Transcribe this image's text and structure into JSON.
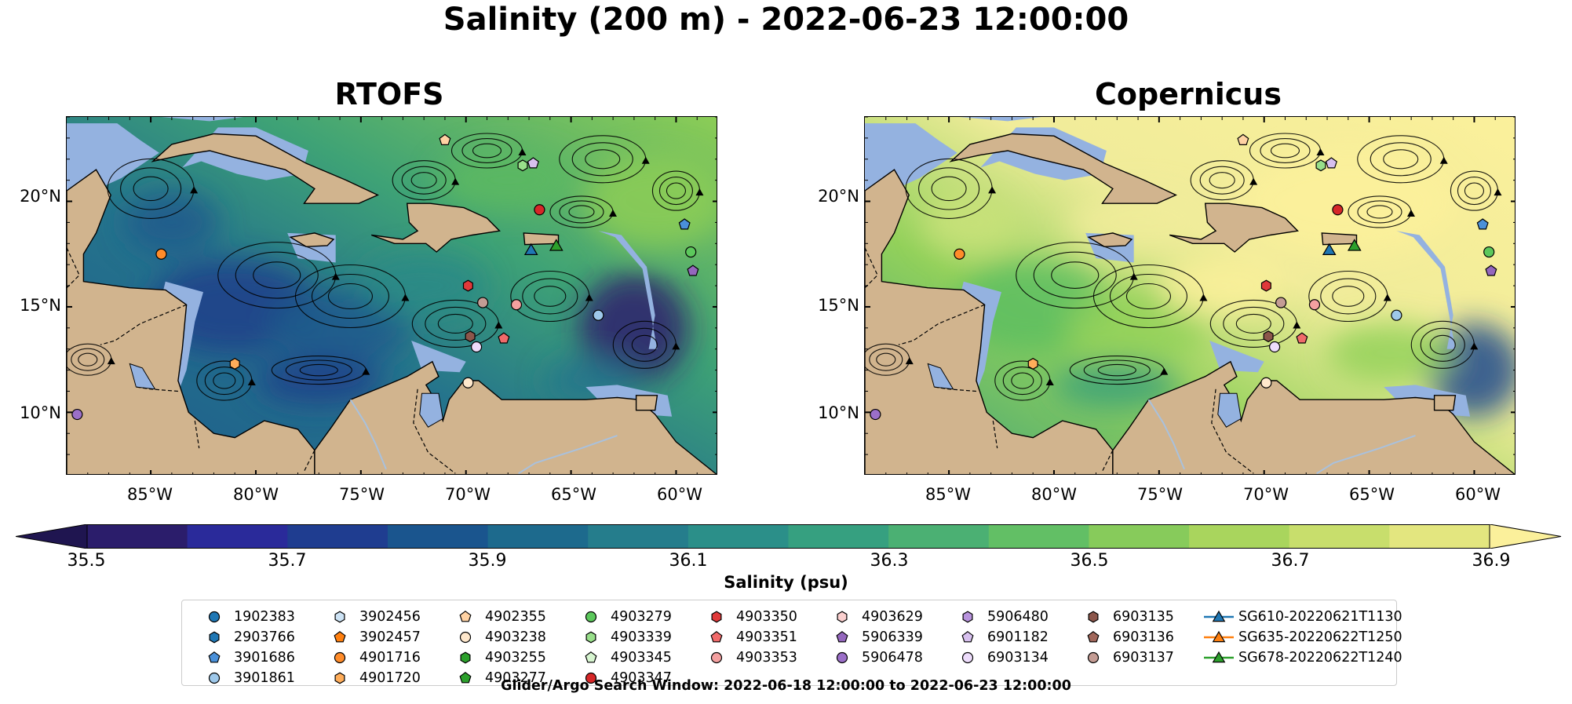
{
  "suptitle": "Salinity (200 m) - 2022-06-23 12:00:00",
  "panels": [
    {
      "title": "RTOFS",
      "palette": [
        "#2e1f6c",
        "#1f3e8a",
        "#1d5a8c",
        "#25748c",
        "#2b8a86",
        "#3ea276",
        "#5cb861",
        "#8ccd56",
        "#c8dd6b"
      ]
    },
    {
      "title": "Copernicus",
      "palette": [
        "#24175f",
        "#1f4a8c",
        "#2a7c8c",
        "#3aa07a",
        "#5cbd62",
        "#93d15b",
        "#c9e27a",
        "#f0ec9a",
        "#fbf09b"
      ]
    }
  ],
  "map_colors": {
    "land": "#d1b48e",
    "shelf": "#94b2e0",
    "border": "#000000"
  },
  "axes": {
    "y_labels": [
      "20°N",
      "15°N",
      "10°N"
    ],
    "x_labels": [
      "85°W",
      "80°W",
      "75°W",
      "70°W",
      "65°W",
      "60°W"
    ]
  },
  "colorbar": {
    "label": "Salinity (psu)",
    "ticks": [
      "35.5",
      "35.7",
      "35.9",
      "36.1",
      "36.3",
      "36.5",
      "36.7",
      "36.9"
    ],
    "colors": [
      "#2b1d6b",
      "#2a2a9a",
      "#1f3d90",
      "#1a558e",
      "#1d6a8d",
      "#257d8c",
      "#2b8f89",
      "#36a080",
      "#4bb073",
      "#62bf65",
      "#87cb5b",
      "#a9d55d",
      "#c8de6c",
      "#e3e67f"
    ],
    "extend_low": "#1f1550",
    "extend_high": "#fbf09b"
  },
  "legend": {
    "items": [
      {
        "label": "1902383",
        "marker": "circle",
        "color": "#1f77b4"
      },
      {
        "label": "2903766",
        "marker": "hexagon",
        "color": "#1f77b4"
      },
      {
        "label": "3901686",
        "marker": "pentagon",
        "color": "#4a90d9"
      },
      {
        "label": "3901861",
        "marker": "circle",
        "color": "#9ec8ea"
      },
      {
        "label": "3902456",
        "marker": "hexagon",
        "color": "#cde3f5"
      },
      {
        "label": "3902457",
        "marker": "pentagon",
        "color": "#ff7f0e"
      },
      {
        "label": "4901716",
        "marker": "circle",
        "color": "#ff8c2a"
      },
      {
        "label": "4901720",
        "marker": "hexagon",
        "color": "#ffad5a"
      },
      {
        "label": "4902355",
        "marker": "pentagon",
        "color": "#ffd2a3"
      },
      {
        "label": "4903238",
        "marker": "circle",
        "color": "#ffe8cc"
      },
      {
        "label": "4903255",
        "marker": "hexagon",
        "color": "#2ca02c"
      },
      {
        "label": "4903277",
        "marker": "pentagon",
        "color": "#2ca02c"
      },
      {
        "label": "4903279",
        "marker": "circle",
        "color": "#5cc85c"
      },
      {
        "label": "4903339",
        "marker": "hexagon",
        "color": "#98df8a"
      },
      {
        "label": "4903345",
        "marker": "pentagon",
        "color": "#d7f5d0"
      },
      {
        "label": "4903347",
        "marker": "circle",
        "color": "#d62728"
      },
      {
        "label": "4903350",
        "marker": "hexagon",
        "color": "#e0393a"
      },
      {
        "label": "4903351",
        "marker": "pentagon",
        "color": "#f06a6a"
      },
      {
        "label": "4903353",
        "marker": "circle",
        "color": "#f4a0a0"
      },
      {
        "label": "4903629",
        "marker": "hexagon",
        "color": "#fbd0cf"
      },
      {
        "label": "5906339",
        "marker": "pentagon",
        "color": "#9467bd"
      },
      {
        "label": "5906478",
        "marker": "circle",
        "color": "#9b6fc8"
      },
      {
        "label": "5906480",
        "marker": "hexagon",
        "color": "#b893dd"
      },
      {
        "label": "6901182",
        "marker": "pentagon",
        "color": "#d7c0ee"
      },
      {
        "label": "6903134",
        "marker": "circle",
        "color": "#eddcfb"
      },
      {
        "label": "6903135",
        "marker": "hexagon",
        "color": "#8c564b"
      },
      {
        "label": "6903136",
        "marker": "pentagon",
        "color": "#a0665a"
      },
      {
        "label": "6903137",
        "marker": "circle",
        "color": "#c49c94"
      },
      {
        "label": "SG610-20220621T1130",
        "marker": "triangle-line",
        "color": "#1f77b4"
      },
      {
        "label": "SG635-20220622T1250",
        "marker": "triangle-line",
        "color": "#ff7f0e"
      },
      {
        "label": "SG678-20220622T1240",
        "marker": "triangle-line",
        "color": "#2ca02c"
      }
    ]
  },
  "footnote": "Glider/Argo Search Window: 2022-06-18 12:00:00 to 2022-06-23 12:00:00"
}
